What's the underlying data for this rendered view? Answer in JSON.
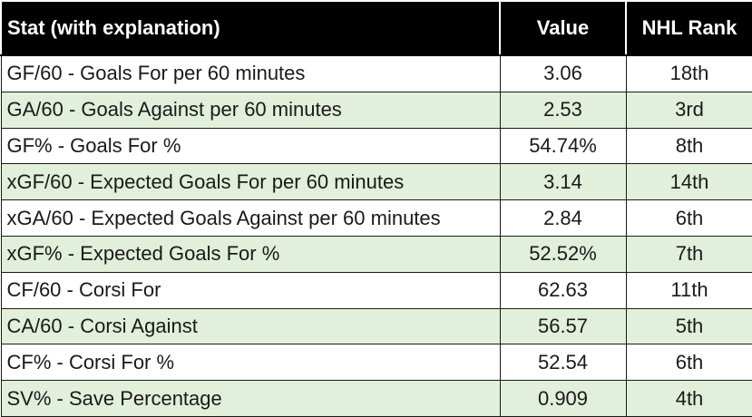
{
  "header": {
    "stat": "Stat (with explanation)",
    "value": "Value",
    "rank": "NHL Rank"
  },
  "rows": [
    {
      "stat": "GF/60 - Goals For per 60 minutes",
      "value": "3.06",
      "rank": "18th"
    },
    {
      "stat": "GA/60 - Goals Against per 60 minutes",
      "value": "2.53",
      "rank": "3rd"
    },
    {
      "stat": "GF% - Goals For %",
      "value": "54.74%",
      "rank": "8th"
    },
    {
      "stat": "xGF/60 - Expected Goals For per 60 minutes",
      "value": "3.14",
      "rank": "14th"
    },
    {
      "stat": "xGA/60 - Expected Goals Against per 60 minutes",
      "value": "2.84",
      "rank": "6th"
    },
    {
      "stat": "xGF% - Expected Goals For %",
      "value": "52.52%",
      "rank": "7th"
    },
    {
      "stat": "CF/60 - Corsi For",
      "value": "62.63",
      "rank": "11th"
    },
    {
      "stat": "CA/60 - Corsi Against",
      "value": "56.57",
      "rank": "5th"
    },
    {
      "stat": "CF% - Corsi For %",
      "value": "52.54",
      "rank": "6th"
    },
    {
      "stat": "SV% - Save Percentage",
      "value": "0.909",
      "rank": "4th"
    }
  ],
  "colors": {
    "header_bg": "#000000",
    "header_text": "#ffffff",
    "band_green": "#e2efda",
    "band_white": "#ffffff"
  }
}
